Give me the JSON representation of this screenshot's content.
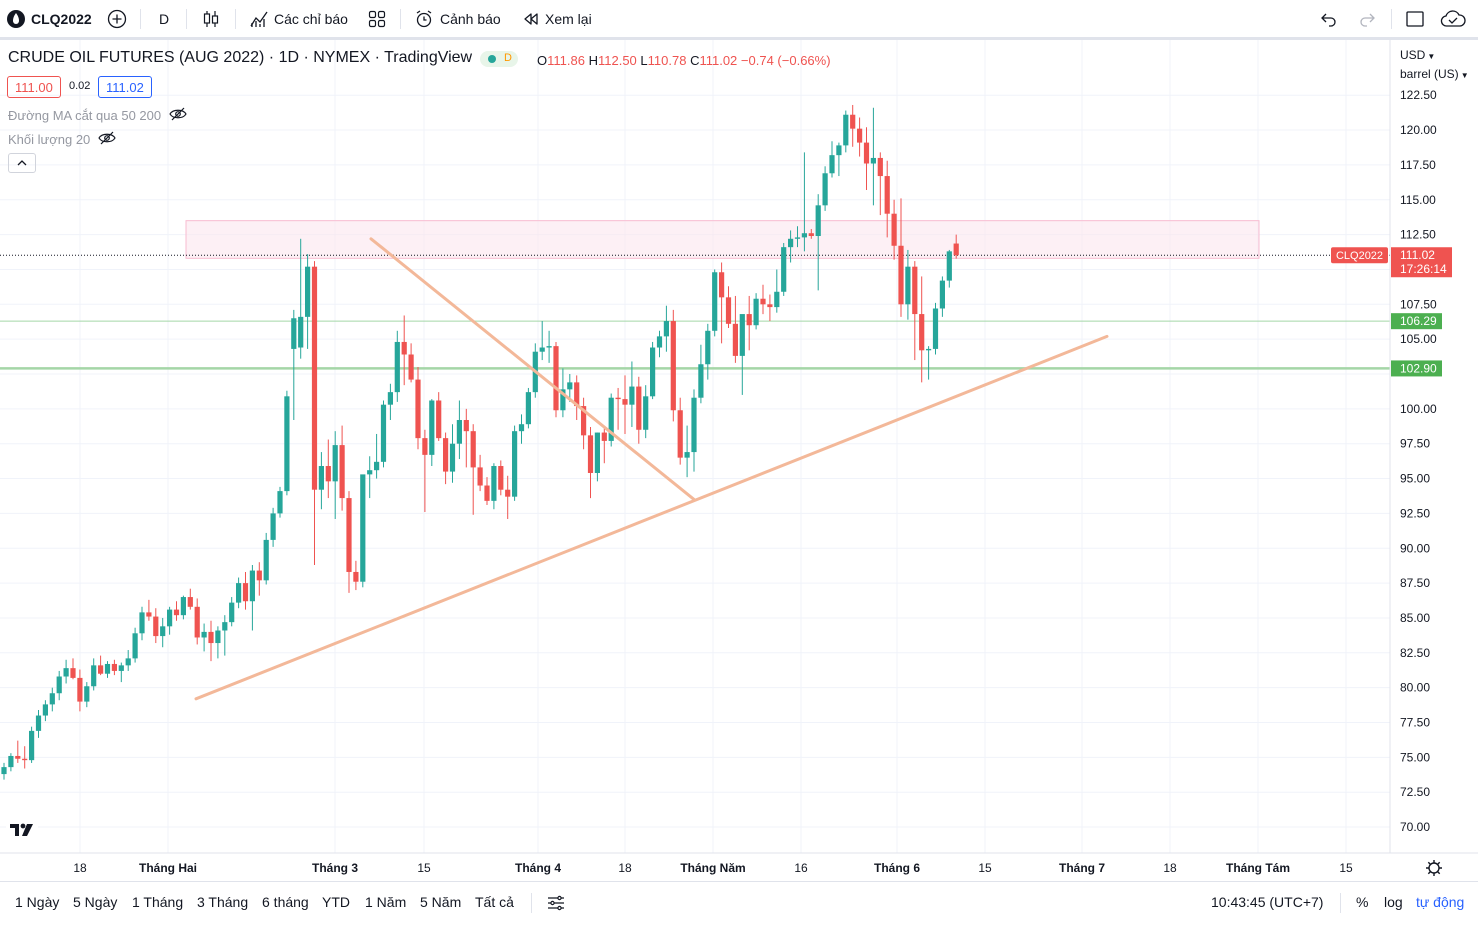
{
  "toolbar": {
    "symbol": "CLQ2022",
    "interval": "D",
    "indicators_label": "Các chỉ báo",
    "alerts_label": "Cảnh báo",
    "replay_label": "Xem lại"
  },
  "legend": {
    "title": "CRUDE OIL FUTURES (AUG 2022) · 1D · NYMEX · TradingView",
    "badge": "D",
    "o_label": "O",
    "o_value": "111.86",
    "h_label": "H",
    "h_value": "112.50",
    "l_label": "L",
    "l_value": "110.78",
    "c_label": "C",
    "c_value": "111.02",
    "change": "−0.74 (−0.66%)",
    "bid": "111.00",
    "spread": "0.02",
    "ask": "111.02",
    "indicator_ma": "Đường MA cắt qua 50 200",
    "indicator_volume": "Khối lượng 20"
  },
  "price_axis": {
    "currency": "USD",
    "unit": "barrel (US)",
    "ticks": [
      "122.50",
      "120.00",
      "117.50",
      "115.00",
      "112.50",
      "107.50",
      "105.00",
      "100.00",
      "97.50",
      "95.00",
      "92.50",
      "90.00",
      "87.50",
      "85.00",
      "82.50",
      "80.00",
      "77.50",
      "75.00",
      "72.50",
      "70.00"
    ],
    "symbol_tag": "CLQ2022",
    "last_price": "111.02",
    "countdown": "17:26:14",
    "level_1": "106.29",
    "level_2": "102.90"
  },
  "time_axis": {
    "labels": [
      "18",
      "Tháng Hai",
      "Tháng 3",
      "15",
      "Tháng 4",
      "18",
      "Tháng Năm",
      "16",
      "Tháng 6",
      "15",
      "Tháng 7",
      "18",
      "Tháng Tám",
      "15"
    ]
  },
  "bottom": {
    "ranges": [
      "1 Ngày",
      "5 Ngày",
      "1 Tháng",
      "3 Tháng",
      "6 tháng",
      "YTD",
      "1 Năm",
      "5 Năm",
      "Tất cả"
    ],
    "clock": "10:43:45 (UTC+7)",
    "percent": "%",
    "log": "log",
    "auto": "tự động"
  },
  "colors": {
    "up": "#26a69a",
    "down": "#ef5350",
    "trendline": "#f3b899",
    "zone": "#fce4ec",
    "level": "#a5d6a7"
  },
  "chart_data": {
    "type": "candlestick",
    "ylim": [
      69.0,
      124.5
    ],
    "candles": [
      [
        73.8,
        74.6,
        73.4,
        74.3
      ],
      [
        74.3,
        75.3,
        74.0,
        75.1
      ],
      [
        75.1,
        76.2,
        74.6,
        74.9
      ],
      [
        74.9,
        75.8,
        74.2,
        74.8
      ],
      [
        74.8,
        77.2,
        74.6,
        76.9
      ],
      [
        76.9,
        78.4,
        76.4,
        78.0
      ],
      [
        78.0,
        79.1,
        77.6,
        78.8
      ],
      [
        78.8,
        80.0,
        78.3,
        79.6
      ],
      [
        79.6,
        81.2,
        79.1,
        80.8
      ],
      [
        80.8,
        82.0,
        80.3,
        81.4
      ],
      [
        81.4,
        82.1,
        80.6,
        80.7
      ],
      [
        80.7,
        81.3,
        78.3,
        79.0
      ],
      [
        79.0,
        80.4,
        78.6,
        80.1
      ],
      [
        80.1,
        82.1,
        79.8,
        81.6
      ],
      [
        81.6,
        82.3,
        80.9,
        81.0
      ],
      [
        81.0,
        81.9,
        80.7,
        81.7
      ],
      [
        81.7,
        82.0,
        80.9,
        81.2
      ],
      [
        81.2,
        81.8,
        80.4,
        81.6
      ],
      [
        81.6,
        82.7,
        81.2,
        82.1
      ],
      [
        82.1,
        84.3,
        81.8,
        83.9
      ],
      [
        83.9,
        85.8,
        83.4,
        85.4
      ],
      [
        85.4,
        86.3,
        84.8,
        85.1
      ],
      [
        85.1,
        85.7,
        83.2,
        83.7
      ],
      [
        83.7,
        85.0,
        82.9,
        84.4
      ],
      [
        84.4,
        85.8,
        83.8,
        85.6
      ],
      [
        85.6,
        86.2,
        84.8,
        85.2
      ],
      [
        85.2,
        86.6,
        84.9,
        86.5
      ],
      [
        86.5,
        87.1,
        85.6,
        85.8
      ],
      [
        85.8,
        86.4,
        83.1,
        83.6
      ],
      [
        83.6,
        84.6,
        82.6,
        84.0
      ],
      [
        84.0,
        84.8,
        81.9,
        83.2
      ],
      [
        83.2,
        84.4,
        82.1,
        84.1
      ],
      [
        84.1,
        85.2,
        82.3,
        84.7
      ],
      [
        84.7,
        86.5,
        84.4,
        86.1
      ],
      [
        86.1,
        87.9,
        85.7,
        87.5
      ],
      [
        87.5,
        88.3,
        85.6,
        86.2
      ],
      [
        86.2,
        88.8,
        84.1,
        88.4
      ],
      [
        88.4,
        89.0,
        86.6,
        87.7
      ],
      [
        87.7,
        91.1,
        87.4,
        90.6
      ],
      [
        90.6,
        92.9,
        90.1,
        92.5
      ],
      [
        92.5,
        94.4,
        92.2,
        94.1
      ],
      [
        94.1,
        101.3,
        93.8,
        100.9
      ],
      [
        104.3,
        107.1,
        99.2,
        106.5
      ],
      [
        104.4,
        112.2,
        103.6,
        106.6
      ],
      [
        106.6,
        111.1,
        104.3,
        110.2
      ],
      [
        110.2,
        110.6,
        88.8,
        94.2
      ],
      [
        94.2,
        96.9,
        92.8,
        95.9
      ],
      [
        95.9,
        97.8,
        93.6,
        94.8
      ],
      [
        94.8,
        98.4,
        92.1,
        97.4
      ],
      [
        97.4,
        98.8,
        92.7,
        93.6
      ],
      [
        93.6,
        94.1,
        86.8,
        88.3
      ],
      [
        88.3,
        89.1,
        87.0,
        87.6
      ],
      [
        87.6,
        95.2,
        87.2,
        95.3
      ],
      [
        95.3,
        96.6,
        93.6,
        95.6
      ],
      [
        95.6,
        98.2,
        95.0,
        96.2
      ],
      [
        96.2,
        100.6,
        95.8,
        100.3
      ],
      [
        100.3,
        101.8,
        99.2,
        101.2
      ],
      [
        101.2,
        105.6,
        100.5,
        104.8
      ],
      [
        104.8,
        106.7,
        101.7,
        103.9
      ],
      [
        103.9,
        104.7,
        101.9,
        102.1
      ],
      [
        102.1,
        103.0,
        97.1,
        97.9
      ],
      [
        97.9,
        98.5,
        92.6,
        96.7
      ],
      [
        96.7,
        100.7,
        95.9,
        100.6
      ],
      [
        100.6,
        101.2,
        97.7,
        97.9
      ],
      [
        97.9,
        98.3,
        94.6,
        95.5
      ],
      [
        95.5,
        98.9,
        94.7,
        97.5
      ],
      [
        97.5,
        100.6,
        96.4,
        99.2
      ],
      [
        99.2,
        100.0,
        95.8,
        98.4
      ],
      [
        98.4,
        98.9,
        92.4,
        95.8
      ],
      [
        95.8,
        96.7,
        94.1,
        94.5
      ],
      [
        94.5,
        95.1,
        93.1,
        93.4
      ],
      [
        93.4,
        96.1,
        92.8,
        95.9
      ],
      [
        95.9,
        96.3,
        93.8,
        94.2
      ],
      [
        94.2,
        95.2,
        92.1,
        93.7
      ],
      [
        93.7,
        98.8,
        93.4,
        98.4
      ],
      [
        98.4,
        99.6,
        97.5,
        98.9
      ],
      [
        98.9,
        101.5,
        98.6,
        101.2
      ],
      [
        101.2,
        104.7,
        100.8,
        104.1
      ],
      [
        104.1,
        106.3,
        103.5,
        104.4
      ],
      [
        104.4,
        105.6,
        103.3,
        104.5
      ],
      [
        104.5,
        104.8,
        99.4,
        99.9
      ],
      [
        99.9,
        102.9,
        99.4,
        101.4
      ],
      [
        101.4,
        102.5,
        100.5,
        101.9
      ],
      [
        101.9,
        102.4,
        99.2,
        100.2
      ],
      [
        100.2,
        100.8,
        97.1,
        98.1
      ],
      [
        98.1,
        98.7,
        93.6,
        95.4
      ],
      [
        95.4,
        98.3,
        94.8,
        98.3
      ],
      [
        98.3,
        98.6,
        96.1,
        97.7
      ],
      [
        97.7,
        101.1,
        97.3,
        100.8
      ],
      [
        100.8,
        101.5,
        98.5,
        100.7
      ],
      [
        100.7,
        102.4,
        98.2,
        100.3
      ],
      [
        100.3,
        103.4,
        98.7,
        101.6
      ],
      [
        101.6,
        102.3,
        97.5,
        98.5
      ],
      [
        98.5,
        101.7,
        97.9,
        100.9
      ],
      [
        100.9,
        104.8,
        100.7,
        104.4
      ],
      [
        104.4,
        105.6,
        103.7,
        105.2
      ],
      [
        105.2,
        107.4,
        104.1,
        106.3
      ],
      [
        106.3,
        107.1,
        99.1,
        99.9
      ],
      [
        99.9,
        100.8,
        96.0,
        96.5
      ],
      [
        96.5,
        98.8,
        95.1,
        96.9
      ],
      [
        96.9,
        101.4,
        95.5,
        100.8
      ],
      [
        100.8,
        104.6,
        100.4,
        103.2
      ],
      [
        103.2,
        106.1,
        102.1,
        105.6
      ],
      [
        105.6,
        110.0,
        105.2,
        109.8
      ],
      [
        109.8,
        110.5,
        104.7,
        108.0
      ],
      [
        108.0,
        108.8,
        105.8,
        106.1
      ],
      [
        106.1,
        108.1,
        103.3,
        103.8
      ],
      [
        103.8,
        106.7,
        101.0,
        106.8
      ],
      [
        106.8,
        108.1,
        104.2,
        106.0
      ],
      [
        106.0,
        108.3,
        105.7,
        107.9
      ],
      [
        107.9,
        108.9,
        106.8,
        107.5
      ],
      [
        107.5,
        108.2,
        106.3,
        107.3
      ],
      [
        107.3,
        110.0,
        106.9,
        108.4
      ],
      [
        108.4,
        111.9,
        108.1,
        111.6
      ],
      [
        111.6,
        112.8,
        110.5,
        112.2
      ],
      [
        112.2,
        113.1,
        111.6,
        112.3
      ],
      [
        112.3,
        118.4,
        111.3,
        112.6
      ],
      [
        112.6,
        112.9,
        112.2,
        112.4
      ],
      [
        112.4,
        115.4,
        108.5,
        114.6
      ],
      [
        114.6,
        117.4,
        114.2,
        116.9
      ],
      [
        116.9,
        119.2,
        116.6,
        118.2
      ],
      [
        118.2,
        119.1,
        116.7,
        118.9
      ],
      [
        118.9,
        121.4,
        118.4,
        121.1
      ],
      [
        121.1,
        121.8,
        118.8,
        120.1
      ],
      [
        120.1,
        120.9,
        118.1,
        119.1
      ],
      [
        119.1,
        120.2,
        115.7,
        117.6
      ],
      [
        117.6,
        121.6,
        114.6,
        118.0
      ],
      [
        118.0,
        118.4,
        113.9,
        116.7
      ],
      [
        116.7,
        117.8,
        112.3,
        114.0
      ],
      [
        114.0,
        115.0,
        110.7,
        111.7
      ],
      [
        111.7,
        115.1,
        106.6,
        107.5
      ],
      [
        107.5,
        111.4,
        106.4,
        110.2
      ],
      [
        110.2,
        110.6,
        103.5,
        106.8
      ],
      [
        106.8,
        109.5,
        101.9,
        104.2
      ],
      [
        104.2,
        104.5,
        102.1,
        104.3
      ],
      [
        104.3,
        107.6,
        103.9,
        107.2
      ],
      [
        107.2,
        109.5,
        106.6,
        109.2
      ],
      [
        109.2,
        111.4,
        108.7,
        111.3
      ],
      [
        111.86,
        112.5,
        110.78,
        111.02
      ]
    ],
    "levels": [
      106.29,
      102.9
    ],
    "zone": [
      110.8,
      113.5
    ],
    "last": 111.02
  }
}
